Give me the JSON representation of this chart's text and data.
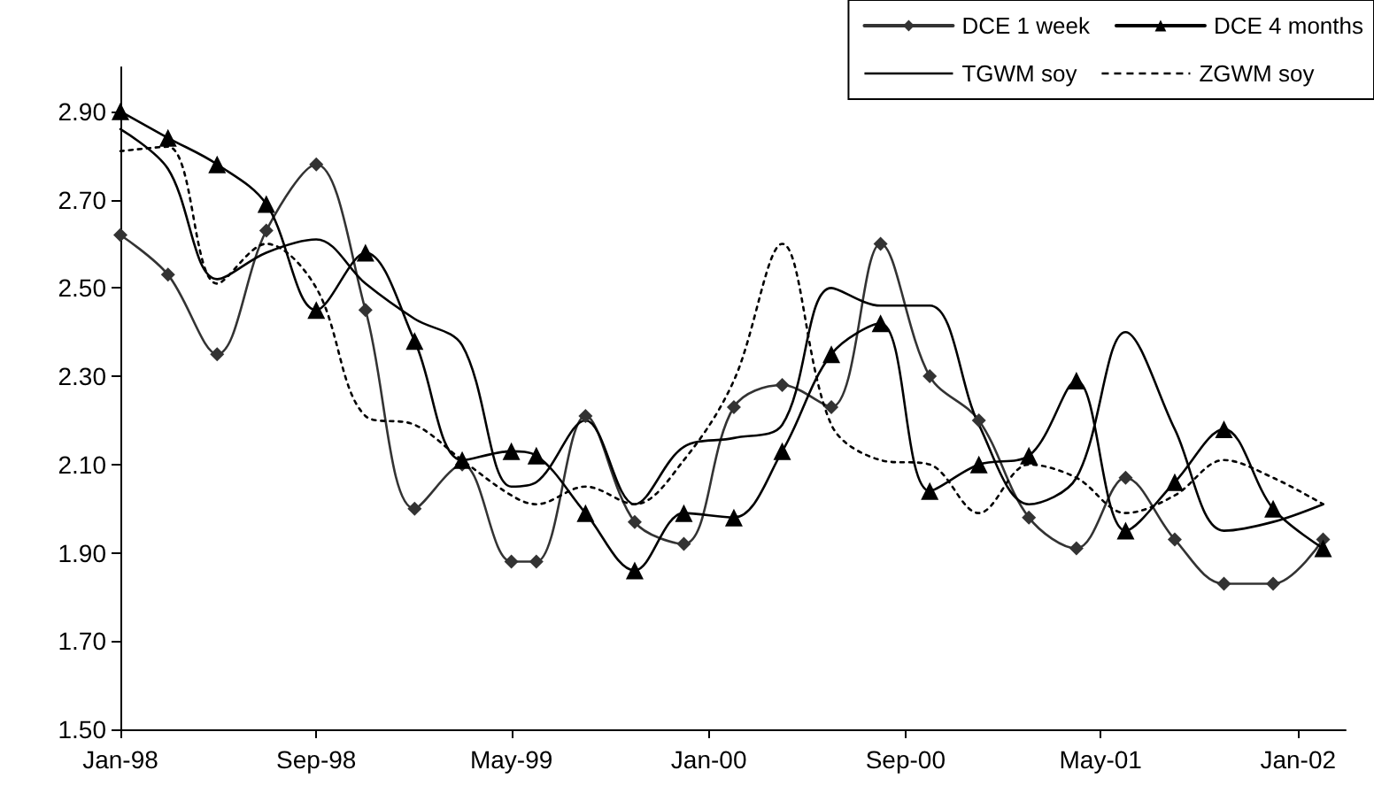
{
  "chart_data": {
    "type": "line",
    "x": [
      "1998-01",
      "1998-03",
      "1998-05",
      "1998-07",
      "1998-09",
      "1998-11",
      "1999-01",
      "1999-03",
      "1999-05",
      "1999-06",
      "1999-08",
      "1999-10",
      "1999-12",
      "2000-02",
      "2000-04",
      "2000-06",
      "2000-08",
      "2000-10",
      "2000-12",
      "2001-02",
      "2001-04",
      "2001-06",
      "2001-08",
      "2001-10",
      "2001-12",
      "2002-02"
    ],
    "series": [
      {
        "name": "DCE 1 week",
        "color": "#333333",
        "marker": "diamond",
        "line_style": "solid",
        "values": [
          2.62,
          2.53,
          2.35,
          2.63,
          2.78,
          2.45,
          2.0,
          2.1,
          1.88,
          1.88,
          2.21,
          1.97,
          1.92,
          2.23,
          2.28,
          2.23,
          2.6,
          2.3,
          2.2,
          1.98,
          1.91,
          2.07,
          1.93,
          1.83,
          1.83,
          1.93
        ]
      },
      {
        "name": "DCE 4 months",
        "color": "#000000",
        "marker": "triangle",
        "line_style": "solid",
        "values": [
          2.9,
          2.84,
          2.78,
          2.69,
          2.45,
          2.58,
          2.38,
          2.11,
          2.13,
          2.12,
          1.99,
          1.86,
          1.99,
          1.98,
          2.13,
          2.35,
          2.42,
          2.04,
          2.1,
          2.12,
          2.29,
          1.95,
          2.06,
          2.18,
          2.0,
          1.91
        ]
      },
      {
        "name": "TGWM soy",
        "color": "#000000",
        "marker": "none",
        "line_style": "solid",
        "values": [
          2.86,
          2.77,
          2.52,
          2.58,
          2.61,
          2.51,
          2.43,
          2.37,
          2.05,
          2.06,
          2.2,
          2.01,
          2.14,
          2.16,
          2.19,
          2.5,
          2.46,
          2.46,
          2.19,
          2.01,
          2.07,
          2.4,
          2.18,
          1.95,
          1.97,
          2.01
        ]
      },
      {
        "name": "ZGWM soy",
        "color": "#000000",
        "marker": "none",
        "line_style": "dotted",
        "values": [
          2.81,
          2.82,
          2.51,
          2.6,
          2.5,
          2.21,
          2.19,
          2.11,
          2.03,
          2.01,
          2.05,
          2.01,
          2.11,
          2.29,
          2.6,
          2.19,
          2.11,
          2.1,
          1.99,
          2.1,
          2.07,
          1.99,
          2.03,
          2.11,
          2.07,
          2.01
        ]
      }
    ],
    "xlim": [
      "1998-01",
      "2002-03"
    ],
    "xticks": [
      {
        "value": "1998-01",
        "label": "Jan-98"
      },
      {
        "value": "1998-09",
        "label": "Sep-98"
      },
      {
        "value": "1999-05",
        "label": "May-99"
      },
      {
        "value": "2000-01",
        "label": "Jan-00"
      },
      {
        "value": "2000-09",
        "label": "Sep-00"
      },
      {
        "value": "2001-05",
        "label": "May-01"
      },
      {
        "value": "2002-01",
        "label": "Jan-02"
      }
    ],
    "ylim": [
      1.5,
      3.0
    ],
    "yticks": [
      {
        "value": 1.5,
        "label": "1.50"
      },
      {
        "value": 1.7,
        "label": "1.70"
      },
      {
        "value": 1.9,
        "label": "1.90"
      },
      {
        "value": 2.1,
        "label": "2.10"
      },
      {
        "value": 2.3,
        "label": "2.30"
      },
      {
        "value": 2.5,
        "label": "2.50"
      },
      {
        "value": 2.7,
        "label": "2.70"
      },
      {
        "value": 2.9,
        "label": "2.90"
      }
    ],
    "grid": false,
    "legend": "top right"
  }
}
